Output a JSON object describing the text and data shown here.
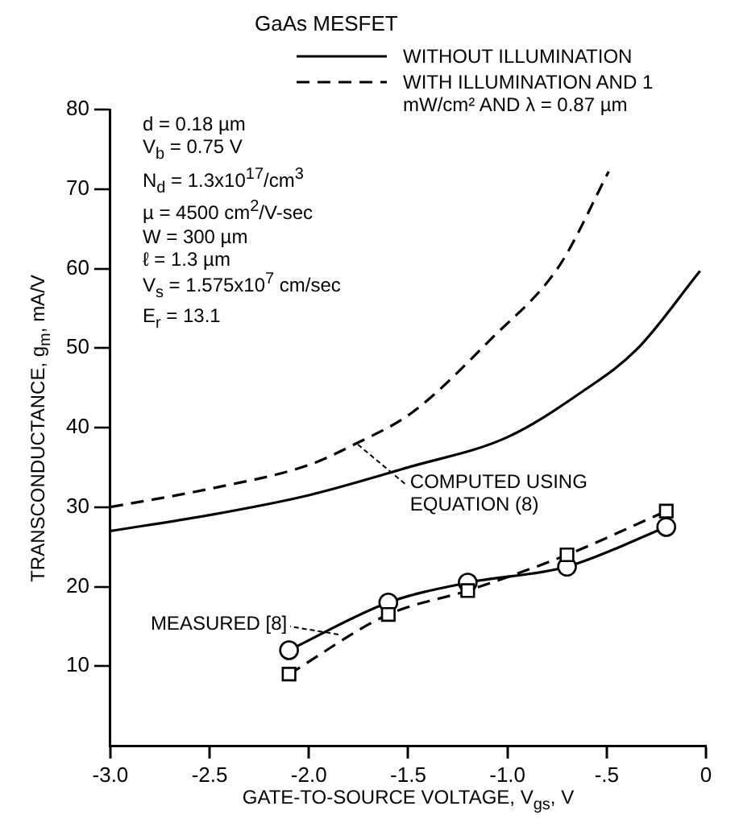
{
  "chart_data": {
    "type": "line",
    "title": "GaAs MESFET",
    "xlabel": "GATE-TO-SOURCE VOLTAGE, V$_{gs}$, V",
    "ylabel": "TRANSCONDUCTANCE, g$_{m}$, mA/V",
    "xlim": [
      -3,
      0
    ],
    "ylim": [
      0,
      80
    ],
    "xticks": [
      {
        "value": -3,
        "label": "-3.0"
      },
      {
        "value": -2.5,
        "label": "-2.5"
      },
      {
        "value": -2,
        "label": "-2.0"
      },
      {
        "value": -1.5,
        "label": "-1.5"
      },
      {
        "value": -1,
        "label": "-1.0"
      },
      {
        "value": -0.5,
        "label": "-.5"
      },
      0
    ],
    "yticks": [
      10,
      20,
      30,
      40,
      50,
      60,
      70,
      80
    ],
    "grid": false,
    "legend": "top right",
    "series": [
      {
        "name": "WITHOUT ILLUMINATION",
        "color": "#000000",
        "line_style": "solid",
        "marker": "none",
        "x": [
          -3,
          -2.5,
          -2,
          -1.5,
          -1,
          -0.63,
          -0.35,
          -0.03
        ],
        "values": [
          27,
          29,
          31.5,
          35,
          38.8,
          44.4,
          49.8,
          59.7
        ]
      },
      {
        "name": "WITH ILLUMINATION AND 1 mW/cm² AND λ = 0.87 µm",
        "color": "#000000",
        "line_style": "dashed",
        "marker": "none",
        "x": [
          -3,
          -2.5,
          -2,
          -1.77,
          -1.48,
          -1.08,
          -0.74,
          -0.49
        ],
        "values": [
          30,
          32.3,
          35.3,
          37.9,
          41.9,
          51.2,
          60.3,
          72.2
        ]
      },
      {
        "color": "#000000",
        "line_style": "solid",
        "marker": "circle",
        "x": [
          -2.1,
          -1.6,
          -1.2,
          -0.7,
          -0.2
        ],
        "values": [
          12,
          18,
          20.5,
          22.5,
          27.5
        ]
      },
      {
        "color": "#000000",
        "line_style": "dashed",
        "marker": "square",
        "x": [
          -2.1,
          -1.6,
          -1.2,
          -0.7,
          -0.2
        ],
        "values": [
          9,
          16.5,
          19.5,
          24,
          29.5
        ]
      }
    ],
    "annotations": [
      "d = 0.18 µm",
      "V$_{b}$ = 0.75 V",
      "N$_{d}$ = 1.3x10$^{17}$/cm$^{3}$",
      "µ = 4500 cm$^{2}$/V-sec",
      "W = 300 µm",
      "ℓ = 1.3 µm",
      "V$_{s}$ = 1.575x10$^{7}$ cm/sec",
      "E$_{r}$ = 13.1",
      {
        "text": "COMPUTED USING EQUATION (8)",
        "x": -1.75,
        "y": 37.9
      },
      {
        "text": "MEASURED [8]",
        "x": -1.85,
        "y": 14
      }
    ]
  }
}
